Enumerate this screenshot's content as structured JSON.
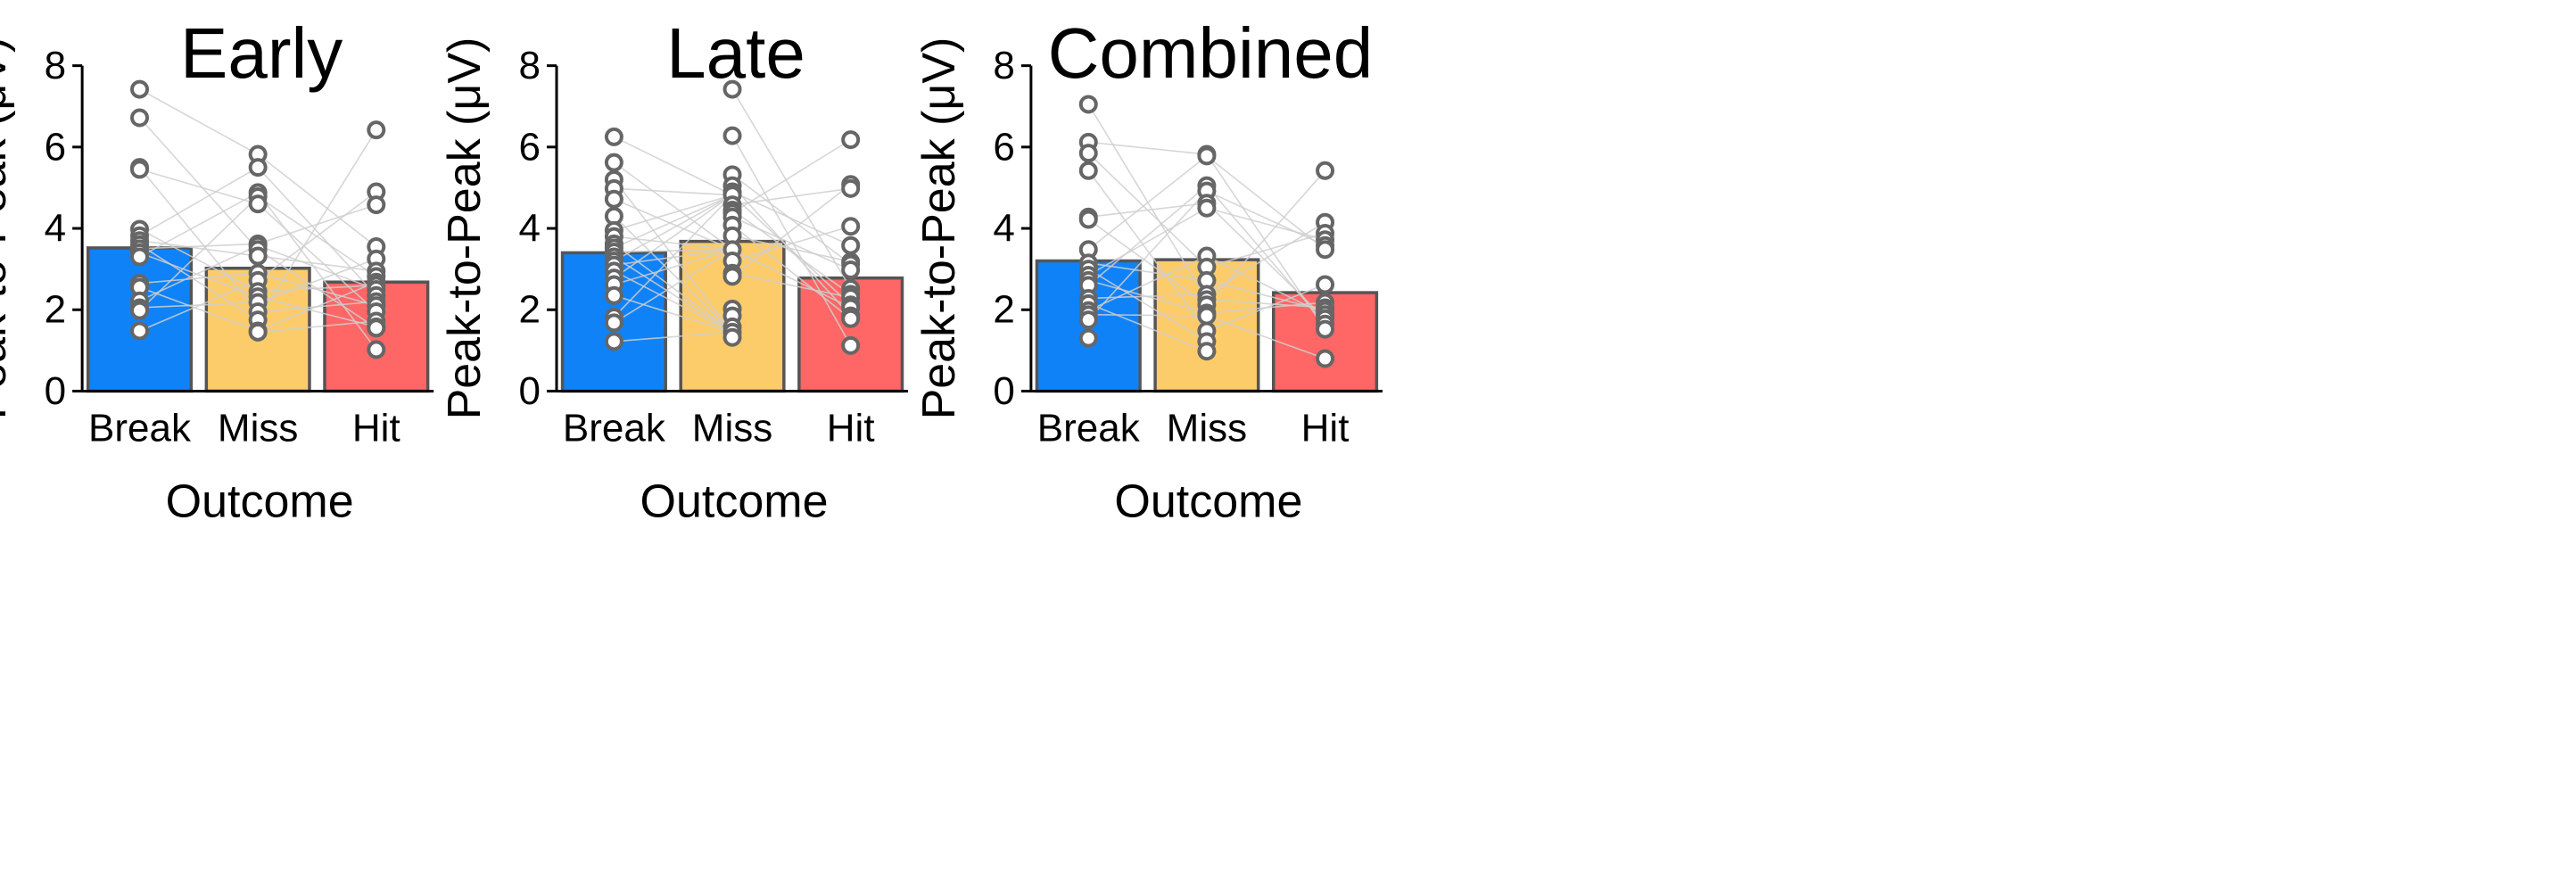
{
  "chart_data": [
    {
      "type": "bar",
      "title": "Early",
      "xlabel": "Outcome",
      "ylabel": "Peak-to-Peak (μV)",
      "ylim": [
        0,
        8
      ],
      "yticks": [
        "0",
        "2",
        "4",
        "6",
        "8"
      ],
      "categories": [
        "Break",
        "Miss",
        "Hit"
      ],
      "values": [
        3.52,
        3.02,
        2.68
      ],
      "colors": [
        "#1082F7",
        "#FDCC6A",
        "#FF6666"
      ],
      "points": {
        "Break": [
          7.42,
          6.72,
          5.5,
          5.45,
          3.98,
          3.82,
          3.7,
          3.6,
          3.5,
          3.4,
          3.3,
          2.65,
          2.55,
          2.22,
          2.05,
          1.98,
          1.48
        ],
        "Miss": [
          5.82,
          5.5,
          4.88,
          4.78,
          4.6,
          3.62,
          3.58,
          3.48,
          3.32,
          2.9,
          2.72,
          2.45,
          2.32,
          2.18,
          1.95,
          1.75,
          1.48,
          1.45
        ],
        "Hit": [
          6.42,
          4.9,
          4.58,
          3.55,
          3.25,
          2.95,
          2.82,
          2.68,
          2.6,
          2.5,
          2.35,
          2.2,
          2.1,
          1.95,
          1.72,
          1.58,
          1.55,
          1.02
        ]
      },
      "grid": false,
      "legend": "none"
    },
    {
      "type": "bar",
      "title": "Late",
      "xlabel": "Outcome",
      "ylabel": "Peak-to-Peak (μV)",
      "ylim": [
        0,
        8
      ],
      "yticks": [
        "0",
        "2",
        "4",
        "6",
        "8"
      ],
      "categories": [
        "Break",
        "Miss",
        "Hit"
      ],
      "values": [
        3.4,
        3.68,
        2.78
      ],
      "colors": [
        "#1082F7",
        "#FDCC6A",
        "#FF6666"
      ],
      "points": {
        "Break": [
          6.25,
          5.62,
          5.2,
          4.98,
          4.72,
          4.3,
          3.95,
          3.8,
          3.62,
          3.52,
          3.42,
          3.3,
          3.2,
          3.1,
          2.95,
          2.78,
          2.62,
          2.35,
          1.82,
          1.68,
          1.22
        ],
        "Miss": [
          7.42,
          6.28,
          5.32,
          5.05,
          4.9,
          4.82,
          4.58,
          4.45,
          4.38,
          4.28,
          4.08,
          3.82,
          3.48,
          3.2,
          2.9,
          2.82,
          2.02,
          1.85,
          1.58,
          1.45,
          1.32
        ],
        "Hit": [
          6.18,
          5.08,
          4.98,
          4.05,
          3.58,
          3.18,
          3.12,
          2.98,
          2.52,
          2.38,
          2.3,
          2.12,
          2.05,
          1.85,
          1.78,
          1.12
        ]
      },
      "grid": false,
      "legend": "none"
    },
    {
      "type": "bar",
      "title": "Combined",
      "xlabel": "Outcome",
      "ylabel": "Peak-to-Peak (μV)",
      "ylim": [
        0,
        8
      ],
      "yticks": [
        "0",
        "2",
        "4",
        "6",
        "8"
      ],
      "categories": [
        "Break",
        "Miss",
        "Hit"
      ],
      "values": [
        3.2,
        3.23,
        2.42
      ],
      "colors": [
        "#1082F7",
        "#FDCC6A",
        "#FF6666"
      ],
      "points": {
        "Break": [
          7.05,
          6.12,
          5.85,
          5.42,
          4.28,
          4.22,
          3.48,
          3.15,
          3.0,
          2.85,
          2.72,
          2.6,
          2.28,
          2.15,
          1.98,
          1.88,
          1.75,
          1.3
        ],
        "Miss": [
          5.82,
          5.78,
          5.05,
          4.92,
          4.62,
          4.5,
          3.32,
          3.05,
          2.72,
          2.38,
          2.25,
          2.12,
          1.92,
          1.85,
          1.48,
          1.22,
          0.98
        ],
        "Hit": [
          5.42,
          4.15,
          3.88,
          3.72,
          3.58,
          3.48,
          2.62,
          2.18,
          2.05,
          1.98,
          1.88,
          1.78,
          1.65,
          1.52,
          0.8
        ]
      },
      "grid": false,
      "legend": "none"
    }
  ]
}
